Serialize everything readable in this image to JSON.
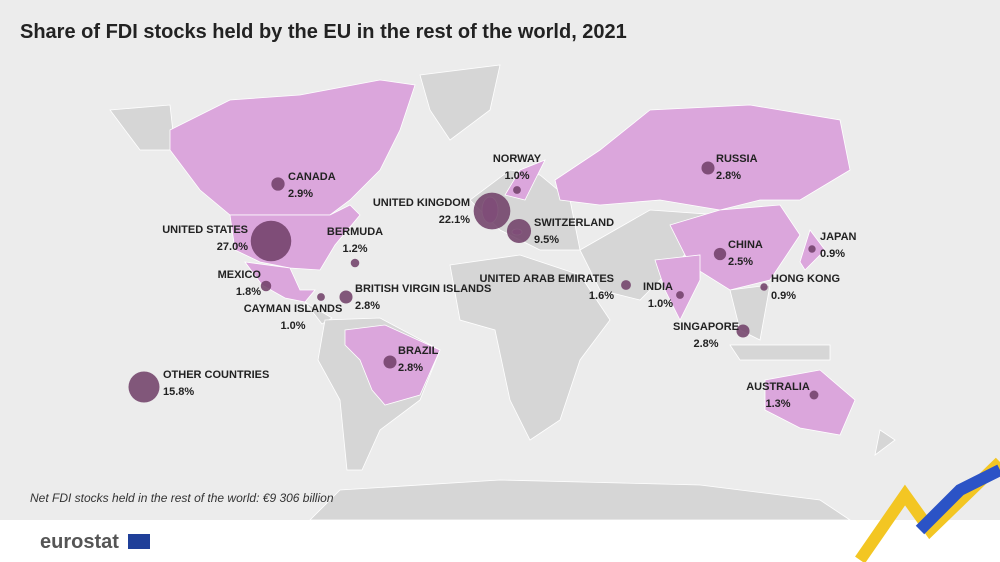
{
  "title": "Share of FDI stocks held by the EU in the rest of the world, 2021",
  "note": "Net FDI stocks held in the rest of the world:  €9 306 billion",
  "logo": "eurostat",
  "locations": [
    {
      "name": "UNITED STATES",
      "value": 27.0,
      "value_label": "27.0%"
    },
    {
      "name": "CANADA",
      "value": 2.9,
      "value_label": "2.9%"
    },
    {
      "name": "BERMUDA",
      "value": 1.2,
      "value_label": "1.2%"
    },
    {
      "name": "MEXICO",
      "value": 1.8,
      "value_label": "1.8%"
    },
    {
      "name": "CAYMAN ISLANDS",
      "value": 1.0,
      "value_label": "1.0%"
    },
    {
      "name": "BRITISH VIRGIN ISLANDS",
      "value": 2.8,
      "value_label": "2.8%"
    },
    {
      "name": "BRAZIL",
      "value": 2.8,
      "value_label": "2.8%"
    },
    {
      "name": "OTHER COUNTRIES",
      "value": 15.8,
      "value_label": "15.8%"
    },
    {
      "name": "UNITED KINGDOM",
      "value": 22.1,
      "value_label": "22.1%"
    },
    {
      "name": "NORWAY",
      "value": 1.0,
      "value_label": "1.0%"
    },
    {
      "name": "SWITZERLAND",
      "value": 9.5,
      "value_label": "9.5%"
    },
    {
      "name": "UNITED ARAB EMIRATES",
      "value": 1.6,
      "value_label": "1.6%"
    },
    {
      "name": "INDIA",
      "value": 1.0,
      "value_label": "1.0%"
    },
    {
      "name": "CHINA",
      "value": 2.5,
      "value_label": "2.5%"
    },
    {
      "name": "HONG KONG",
      "value": 0.9,
      "value_label": "0.9%"
    },
    {
      "name": "JAPAN",
      "value": 0.9,
      "value_label": "0.9%"
    },
    {
      "name": "RUSSIA",
      "value": 2.8,
      "value_label": "2.8%"
    },
    {
      "name": "SINGAPORE",
      "value": 2.8,
      "value_label": "2.8%"
    },
    {
      "name": "AUSTRALIA",
      "value": 1.3,
      "value_label": "1.3%"
    }
  ]
}
